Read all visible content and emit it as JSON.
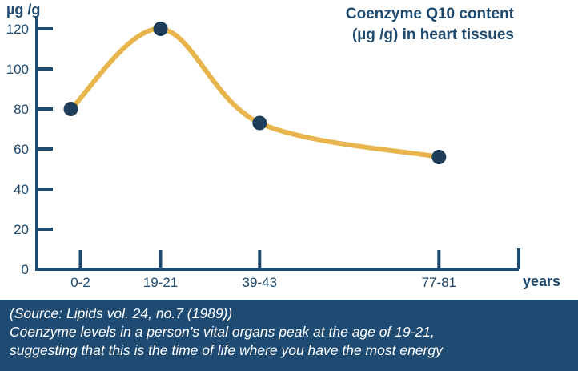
{
  "chart_data": {
    "type": "line",
    "title_lines": [
      "Coenzyme Q10 content",
      "(µg /g) in heart tissues"
    ],
    "ylabel": "µg /g",
    "xlabel": "years",
    "categories": [
      "0-2",
      "19-21",
      "39-43",
      "77-81"
    ],
    "x": [
      1,
      20,
      41,
      79
    ],
    "values": [
      80,
      120,
      73,
      56
    ],
    "ylim": [
      0,
      120
    ],
    "yticks": [
      0,
      20,
      40,
      60,
      80,
      100,
      120
    ],
    "grid": false,
    "colors": {
      "line": "#e8b54d",
      "marker": "#1d3d5a",
      "axis": "#1e4a70"
    }
  },
  "note": {
    "source": "(Source: Lipids vol. 24, no.7 (1989))",
    "line1": "Coenzyme levels in a person’s vital organs peak at the age of 19-21,",
    "line2": "suggesting that this is the time of life where you have the most energy"
  }
}
